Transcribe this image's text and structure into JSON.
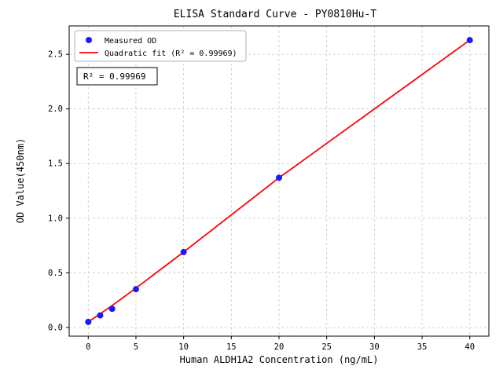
{
  "chart_data": {
    "type": "scatter",
    "title": "ELISA Standard Curve - PY0810Hu-T",
    "xlabel": "Human ALDH1A2 Concentration (ng/mL)",
    "ylabel": "OD Value(450nm)",
    "xlim": [
      -2,
      42
    ],
    "ylim": [
      -0.08,
      2.76
    ],
    "xticks": [
      0,
      5,
      10,
      15,
      20,
      25,
      30,
      35,
      40
    ],
    "yticks": [
      0.0,
      0.5,
      1.0,
      1.5,
      2.0,
      2.5
    ],
    "grid": true,
    "legend_position": "upper left",
    "annotation": "R² = 0.99969",
    "series": [
      {
        "name": "Measured OD",
        "kind": "scatter",
        "color": "#1a1aff",
        "x": [
          0,
          1.25,
          2.5,
          5,
          10,
          20,
          40
        ],
        "y": [
          0.05,
          0.11,
          0.17,
          0.35,
          0.69,
          1.37,
          2.63
        ]
      },
      {
        "name": "Quadratic fit (R² = 0.99969)",
        "kind": "line",
        "color": "#ff0000",
        "x": [
          0,
          1.25,
          2.5,
          5,
          10,
          20,
          40
        ],
        "y": [
          0.05,
          0.125,
          0.2,
          0.36,
          0.69,
          1.37,
          2.63
        ]
      }
    ]
  },
  "colors": {
    "marker": "#1a1aff",
    "fit_line": "#ff0000",
    "grid": "#c9c9c9",
    "legend_border": "#b0b0b0"
  }
}
